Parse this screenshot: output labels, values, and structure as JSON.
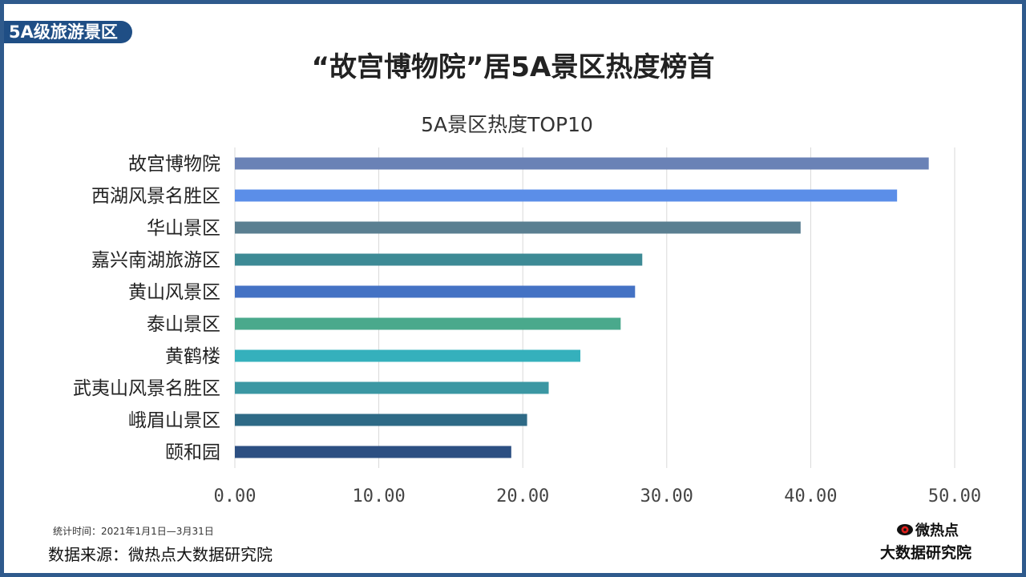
{
  "header": {
    "tag": "5A级旅游景区",
    "title": "“故宫博物院”居5A景区热度榜首"
  },
  "chart_data": {
    "type": "bar",
    "orientation": "horizontal",
    "title": "5A景区热度TOP10",
    "categories": [
      "故宫博物院",
      "西湖风景名胜区",
      "华山景区",
      "嘉兴南湖旅游区",
      "黄山风景区",
      "泰山景区",
      "黄鹤楼",
      "武夷山风景名胜区",
      "峨眉山景区",
      "颐和园"
    ],
    "values": [
      48.2,
      46.0,
      39.3,
      28.3,
      27.8,
      26.8,
      24.0,
      21.8,
      20.3,
      19.2
    ],
    "colors": [
      "#6a82b6",
      "#5b8ee8",
      "#5a7f91",
      "#3d8a95",
      "#4472c4",
      "#4aa98c",
      "#35b0bc",
      "#3b97a3",
      "#2e6a86",
      "#2c4f82"
    ],
    "xlim": [
      0,
      50
    ],
    "xticks": [
      0,
      10,
      20,
      30,
      40,
      50
    ],
    "xtick_labels": [
      "0.00",
      "10.00",
      "20.00",
      "30.00",
      "40.00",
      "50.00"
    ],
    "xlabel": "",
    "ylabel": "",
    "grid": true
  },
  "footer": {
    "period": "统计时间：2021年1月1日—3月31日",
    "source": "数据来源：微热点大数据研究院",
    "logo_name": "微热点",
    "logo_sub": "大数据研究院"
  }
}
